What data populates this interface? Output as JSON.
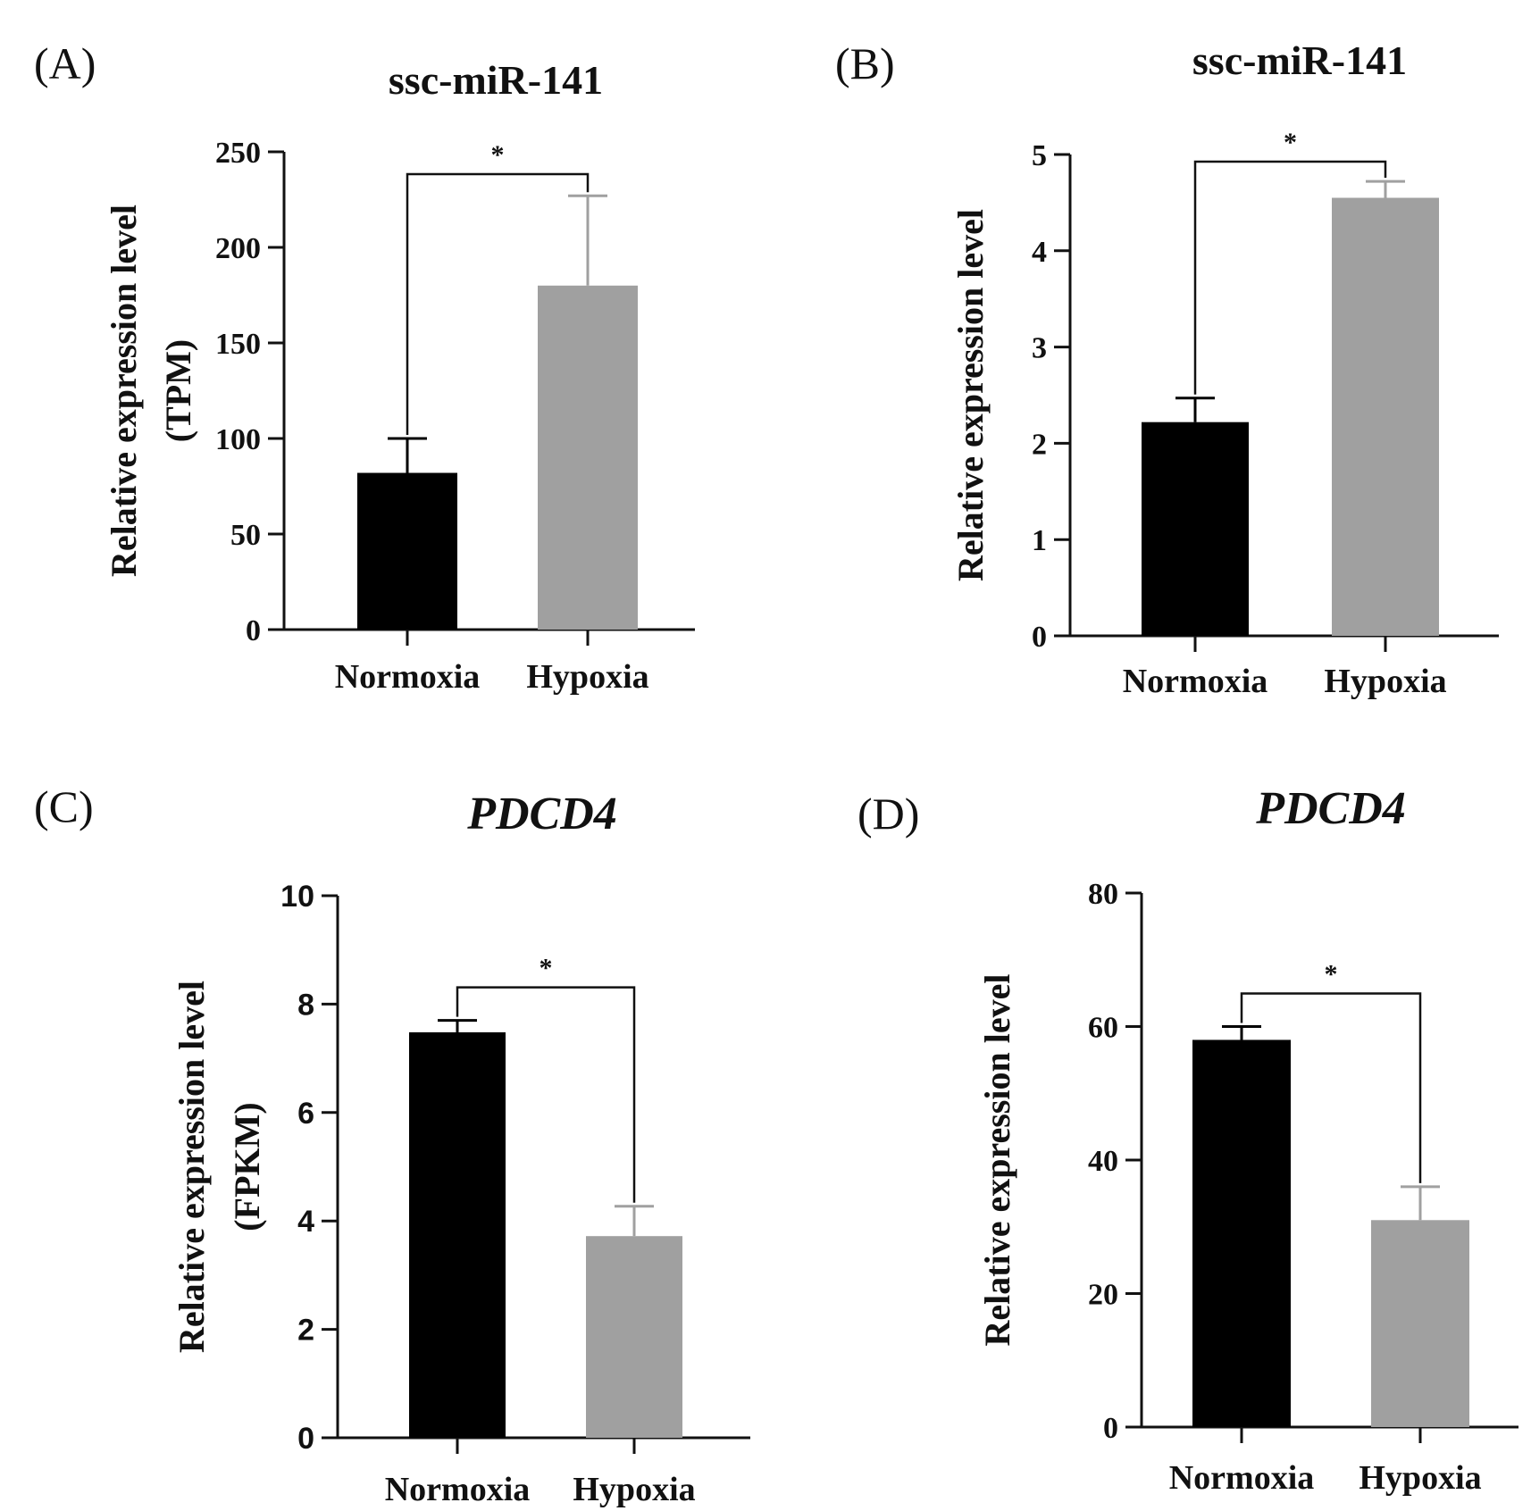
{
  "chart_data": [
    {
      "type": "bar",
      "panel": "(A)",
      "title": "ssc-miR-141",
      "title_italic": false,
      "ylabel": "Relative expression level",
      "ylabel2": "(TPM)",
      "categories": [
        "Normoxia",
        "Hypoxia"
      ],
      "values": [
        82,
        180
      ],
      "errors": [
        18,
        47
      ],
      "colors": [
        "#000000",
        "#a0a0a0"
      ],
      "ylim": [
        0,
        250
      ],
      "yticks": [
        0,
        50,
        100,
        150,
        200,
        250
      ],
      "significance": "*"
    },
    {
      "type": "bar",
      "panel": "(B)",
      "title": "ssc-miR-141",
      "title_italic": false,
      "ylabel": "Relative expression level",
      "ylabel2": "",
      "categories": [
        "Normoxia",
        "Hypoxia"
      ],
      "values": [
        2.22,
        4.55
      ],
      "errors": [
        0.25,
        0.17
      ],
      "colors": [
        "#000000",
        "#a0a0a0"
      ],
      "ylim": [
        0,
        5
      ],
      "yticks": [
        0,
        1,
        2,
        3,
        4,
        5
      ],
      "significance": "*"
    },
    {
      "type": "bar",
      "panel": "(C)",
      "title": "PDCD4",
      "title_italic": true,
      "ylabel": "Relative expression level",
      "ylabel2": "(FPKM)",
      "categories": [
        "Normoxia",
        "Hypoxia"
      ],
      "values": [
        7.48,
        3.72
      ],
      "errors": [
        0.22,
        0.55
      ],
      "colors": [
        "#000000",
        "#a0a0a0"
      ],
      "ylim": [
        0,
        10
      ],
      "yticks": [
        0,
        2,
        4,
        6,
        8,
        10
      ],
      "significance": "*"
    },
    {
      "type": "bar",
      "panel": "(D)",
      "title": "PDCD4",
      "title_italic": true,
      "ylabel": "Relative expression level",
      "ylabel2": "",
      "categories": [
        "Normoxia",
        "Hypoxia"
      ],
      "values": [
        58,
        31
      ],
      "errors": [
        2,
        5
      ],
      "colors": [
        "#000000",
        "#a0a0a0"
      ],
      "ylim": [
        0,
        80
      ],
      "yticks": [
        0,
        20,
        40,
        60,
        80
      ],
      "significance": "*"
    }
  ]
}
